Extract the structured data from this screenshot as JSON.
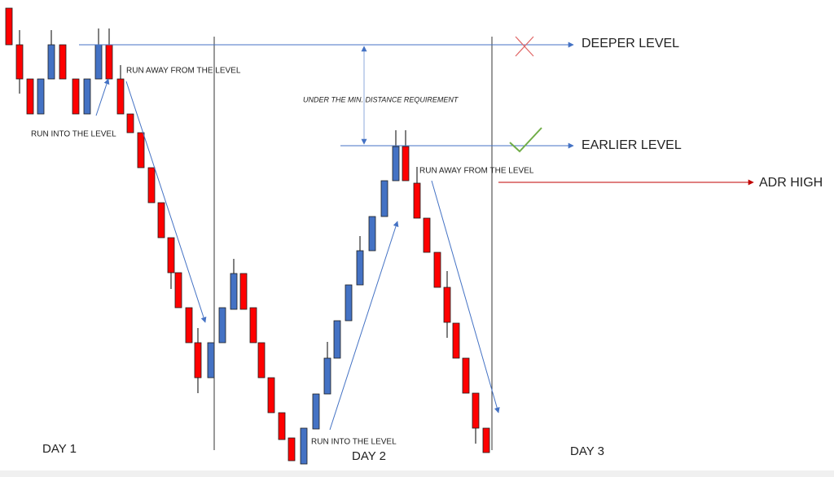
{
  "annotations": {
    "run_into_1": "RUN INTO THE LEVEL",
    "run_away_1": "RUN AWAY FROM THE LEVEL",
    "min_distance": "UNDER THE MIN. DISTANCE REQUIREMENT",
    "deeper_level": "DEEPER LEVEL",
    "earlier_level": "EARLIER LEVEL",
    "adr_high": "ADR HIGH",
    "run_into_2": "RUN INTO THE LEVEL",
    "run_away_2": "RUN AWAY FROM THE LEVEL"
  },
  "days": [
    "DAY 1",
    "DAY 2",
    "DAY 3"
  ]
}
